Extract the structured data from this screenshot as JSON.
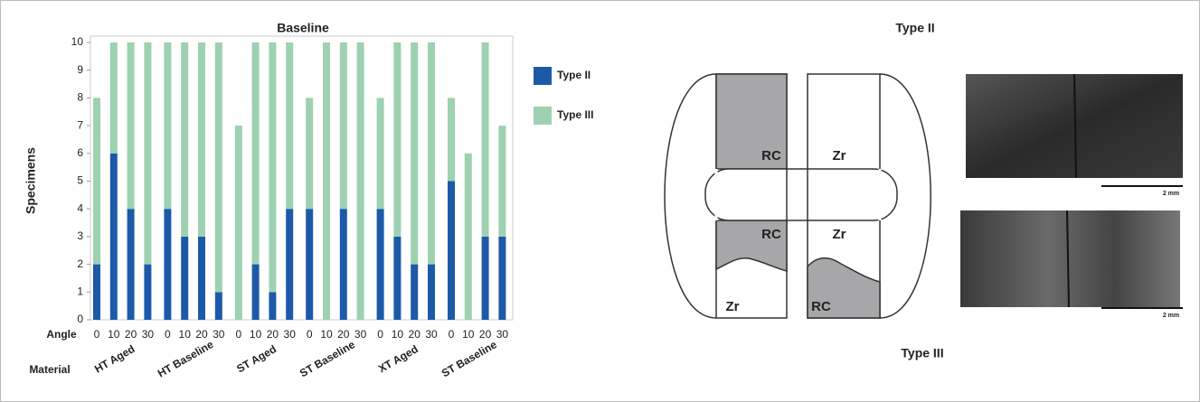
{
  "chart_data": {
    "type": "bar",
    "stacked": true,
    "title": "Baseline",
    "y_label": "Specimens",
    "row_labels": [
      "Angle",
      "Material"
    ],
    "groups": [
      "HT Aged",
      "HT Baseline",
      "ST Aged",
      "ST Baseline",
      "XT Aged",
      "ST Baseline"
    ],
    "categories": [
      "0",
      "10",
      "20",
      "30",
      "0",
      "10",
      "20",
      "30",
      "0",
      "10",
      "20",
      "30",
      "0",
      "10",
      "20",
      "30",
      "0",
      "10",
      "20",
      "30",
      "0",
      "10",
      "20",
      "30"
    ],
    "series": [
      {
        "name": "Type II",
        "color": "#1c5aa8",
        "values": [
          2,
          6,
          4,
          2,
          4,
          3,
          3,
          1,
          0,
          2,
          1,
          4,
          4,
          0,
          4,
          0,
          4,
          3,
          2,
          2,
          5,
          0,
          3,
          3
        ]
      },
      {
        "name": "Type III",
        "color": "#9dd1b2",
        "values": [
          6,
          4,
          6,
          8,
          6,
          7,
          7,
          9,
          7,
          8,
          9,
          6,
          4,
          10,
          6,
          10,
          4,
          7,
          8,
          8,
          3,
          6,
          7,
          4
        ]
      }
    ],
    "ylim": [
      0,
      10
    ],
    "yticks": [
      0,
      1,
      2,
      3,
      4,
      5,
      6,
      7,
      8,
      9,
      10
    ],
    "legend": "right"
  },
  "diagram": {
    "title_top": "Type II",
    "title_bottom": "Type III",
    "labels": [
      "RC",
      "Zr",
      "RC",
      "Zr",
      "Zr",
      "RC"
    ],
    "scale_labels": [
      "2 mm",
      "2 mm"
    ]
  }
}
